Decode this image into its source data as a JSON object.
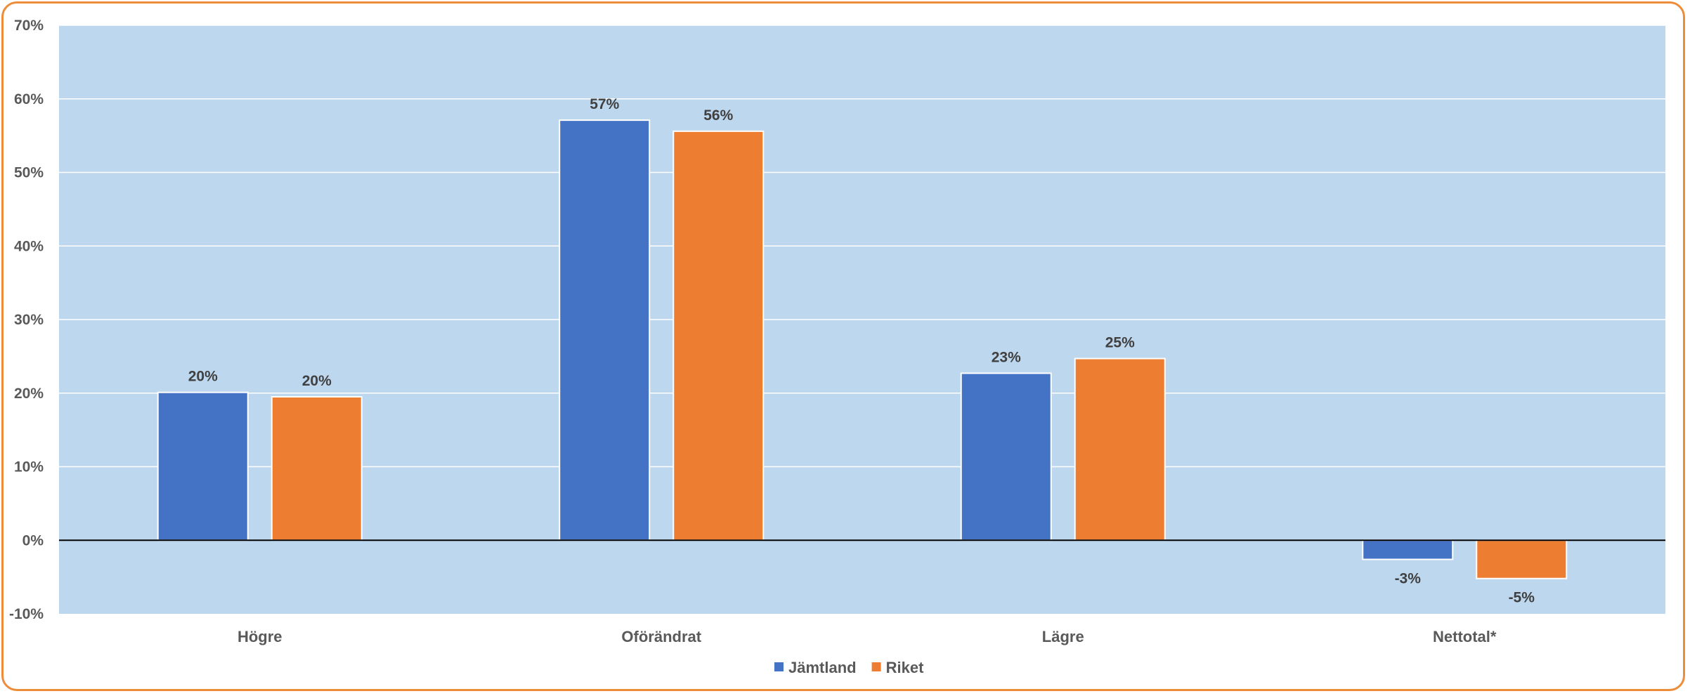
{
  "chart_data": {
    "type": "bar",
    "categories": [
      "Högre",
      "Oförändrat",
      "Lägre",
      "Nettotal*"
    ],
    "series": [
      {
        "name": "Jämtland",
        "color": "#4472C4",
        "values": [
          20.1,
          57.1,
          22.7,
          -2.6
        ],
        "labels": [
          "20%",
          "57%",
          "23%",
          "-3%"
        ]
      },
      {
        "name": "Riket",
        "color": "#ED7D31",
        "values": [
          19.5,
          55.6,
          24.7,
          -5.2
        ],
        "labels": [
          "20%",
          "56%",
          "25%",
          "-5%"
        ]
      }
    ],
    "ylim": [
      -10,
      70
    ],
    "yticks": [
      -10,
      0,
      10,
      20,
      30,
      40,
      50,
      60,
      70
    ],
    "ytick_labels": [
      "-10%",
      "0%",
      "10%",
      "20%",
      "30%",
      "40%",
      "50%",
      "60%",
      "70%"
    ],
    "title": "",
    "xlabel": "",
    "ylabel": "",
    "grid": true,
    "legend_position": "bottom-center",
    "colors": {
      "plot_background": "#BDD7EE",
      "gridline": "#FFFFFF",
      "zero_line": "#000000",
      "border": "#ED8D3A"
    }
  }
}
